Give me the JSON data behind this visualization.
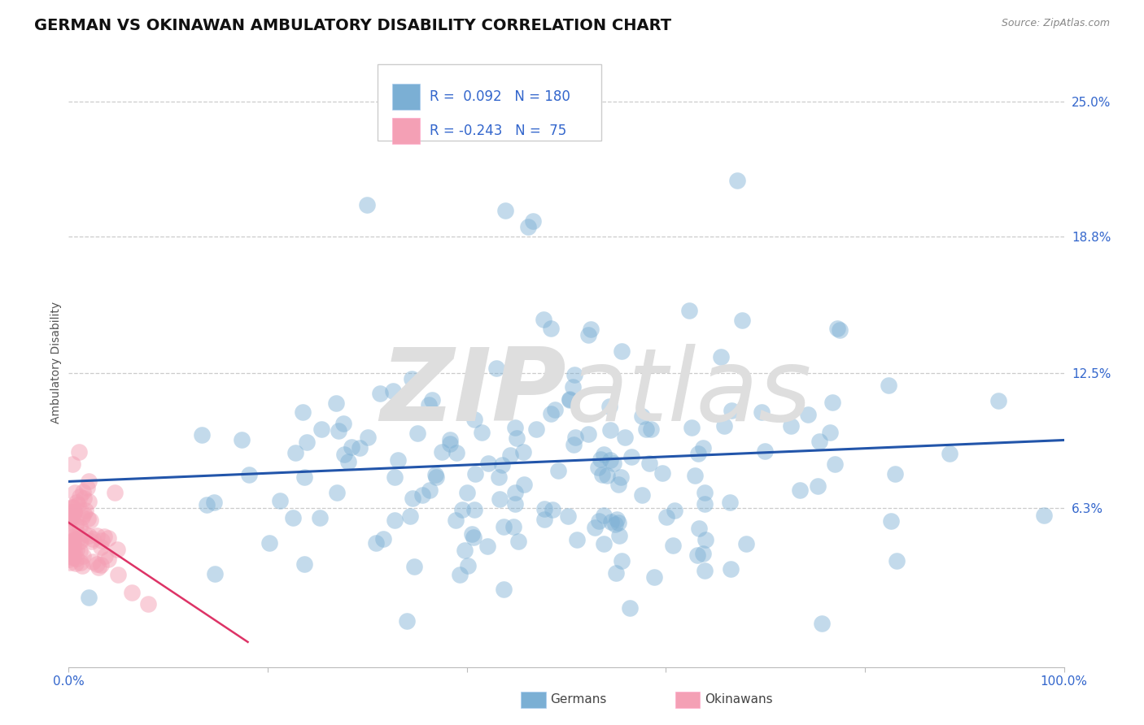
{
  "title": "GERMAN VS OKINAWAN AMBULATORY DISABILITY CORRELATION CHART",
  "source_text": "Source: ZipAtlas.com",
  "ylabel": "Ambulatory Disability",
  "legend_label_1": "Germans",
  "legend_label_2": "Okinawans",
  "r1": 0.092,
  "n1": 180,
  "r2": -0.243,
  "n2": 75,
  "xlim": [
    0.0,
    1.0
  ],
  "ylim": [
    -0.01,
    0.27
  ],
  "yticks": [
    0.063,
    0.125,
    0.188,
    0.25
  ],
  "ytick_labels": [
    "6.3%",
    "12.5%",
    "18.8%",
    "25.0%"
  ],
  "xtick_positions": [
    0.0,
    0.2,
    0.4,
    0.6,
    0.8,
    1.0
  ],
  "xtick_labels": [
    "0.0%",
    "",
    "",
    "",
    "",
    "100.0%"
  ],
  "color_german": "#7BAFD4",
  "color_okinawan": "#F4A0B5",
  "color_german_line": "#2255AA",
  "color_okinawan_line": "#DD3366",
  "background_color": "#FFFFFF",
  "watermark_color": "#E8E8E8",
  "seed": 42,
  "title_fontsize": 14,
  "label_fontsize": 10,
  "tick_fontsize": 11,
  "source_fontsize": 9,
  "legend_fontsize": 12
}
